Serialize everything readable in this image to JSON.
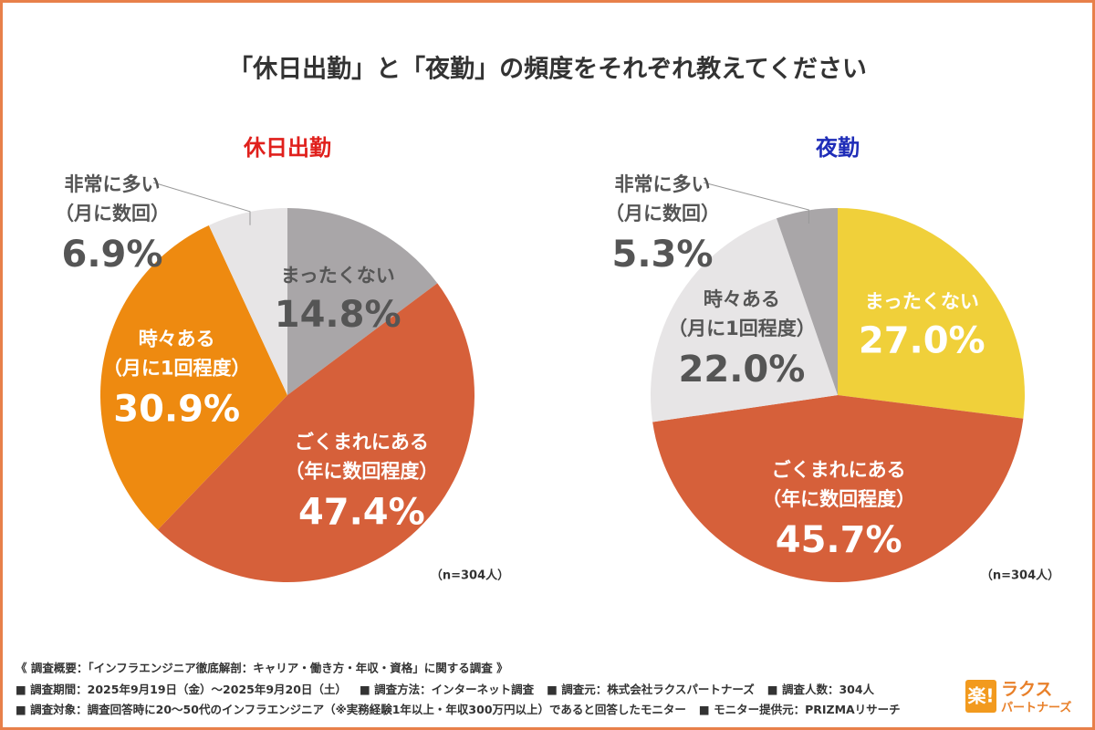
{
  "title": "「休日出勤」と「夜勤」の頻度をそれぞれ教えてください",
  "chart_data": [
    {
      "type": "pie",
      "title": "休日出勤",
      "title_color": "#e0201c",
      "categories": [
        "まったくない",
        "ごくまれにある",
        "時々ある",
        "非常に多い"
      ],
      "category_notes": [
        null,
        "（年に数回程度）",
        "（月に1回程度）",
        "（月に数回）"
      ],
      "values": [
        14.8,
        47.4,
        30.9,
        6.9
      ],
      "value_labels": [
        "14.8%",
        "47.4%",
        "30.9%",
        "6.9%"
      ],
      "colors": [
        "#a9a6a8",
        "#d6603a",
        "#ee8a10",
        "#e7e5e6"
      ],
      "label_colors": [
        "#555555",
        "#ffffff",
        "#ffffff",
        "#555555"
      ],
      "note": "（n=304人）"
    },
    {
      "type": "pie",
      "title": "夜勤",
      "title_color": "#1f2db8",
      "categories": [
        "まったくない",
        "ごくまれにある",
        "時々ある",
        "非常に多い"
      ],
      "category_notes": [
        null,
        "（年に数回程度）",
        "（月に1回程度）",
        "（月に数回）"
      ],
      "values": [
        27.0,
        45.7,
        22.0,
        5.3
      ],
      "value_labels": [
        "27.0%",
        "45.7%",
        "22.0%",
        "5.3%"
      ],
      "colors": [
        "#f0d03a",
        "#d6603a",
        "#e7e5e6",
        "#a9a6a8"
      ],
      "label_colors": [
        "#ffffff",
        "#ffffff",
        "#555555",
        "#555555"
      ],
      "note": "（n=304人）"
    }
  ],
  "footer": {
    "heading": "《 調査概要：「インフラエンジニア徹底解剖：キャリア・働き方・年収・資格」に関する調査 》",
    "lines": [
      [
        "■ 調査期間：2025年9月19日（金）〜2025年9月20日（土）",
        "■ 調査方法：インターネット調査",
        "■ 調査元：株式会社ラクスパートナーズ",
        "■ 調査人数：304人"
      ],
      [
        "■ 調査対象：調査回答時に20〜50代のインフラエンジニア（※実務経験1年以上・年収300万円以上）であると回答したモニター",
        "■ モニター提供元：PRIZMAリサーチ"
      ]
    ]
  },
  "logo": {
    "mark": "楽!",
    "name": "ラクス",
    "sub": "パートナーズ"
  }
}
